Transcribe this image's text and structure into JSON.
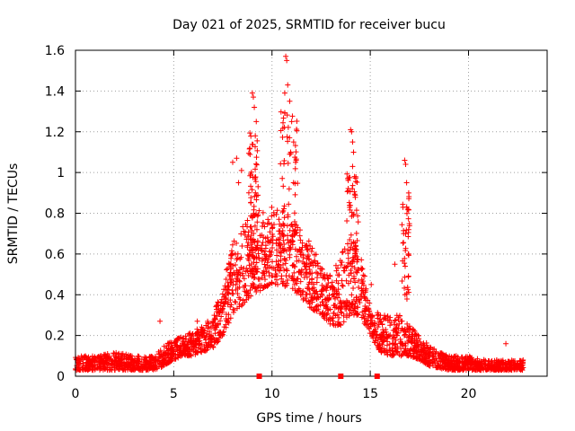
{
  "chart_data": {
    "type": "scatter",
    "title": "Day 021 of 2025, SRMTID for receiver bucu",
    "xlabel": "GPS time / hours",
    "ylabel": "SRMTID / TECUs",
    "xlim": [
      0,
      24
    ],
    "ylim": [
      0,
      1.6
    ],
    "x_ticks": [
      0,
      5,
      10,
      15,
      20
    ],
    "x_tick_labels": [
      "0",
      "5",
      "10",
      "15",
      "20"
    ],
    "y_ticks": [
      0,
      0.2,
      0.4,
      0.6,
      0.8,
      1.0,
      1.2,
      1.4,
      1.6
    ],
    "y_tick_labels": [
      "0",
      "0.2",
      "0.4",
      "0.6",
      "0.8",
      "1",
      "1.2",
      "1.4",
      "1.6"
    ],
    "grid": true,
    "marker": "plus",
    "marker_color": "#ff0000",
    "gap_markers_x": [
      9.35,
      13.5,
      15.35
    ],
    "envelope": {
      "x": [
        0,
        1,
        2,
        3,
        4,
        4.5,
        5,
        5.5,
        6,
        6.5,
        7,
        7.5,
        8,
        8.5,
        9,
        9.5,
        10,
        10.5,
        11,
        11.5,
        12,
        12.5,
        13,
        13.5,
        14,
        14.5,
        15,
        15.5,
        16,
        16.5,
        17,
        17.5,
        18,
        18.5,
        19,
        20,
        21,
        22,
        22.8
      ],
      "lo": [
        0.03,
        0.03,
        0.03,
        0.03,
        0.03,
        0.05,
        0.08,
        0.1,
        0.1,
        0.12,
        0.14,
        0.2,
        0.3,
        0.35,
        0.4,
        0.42,
        0.45,
        0.45,
        0.42,
        0.38,
        0.33,
        0.3,
        0.25,
        0.25,
        0.3,
        0.3,
        0.2,
        0.12,
        0.1,
        0.1,
        0.1,
        0.08,
        0.05,
        0.04,
        0.03,
        0.03,
        0.03,
        0.03,
        0.03
      ],
      "hi": [
        0.1,
        0.1,
        0.12,
        0.1,
        0.1,
        0.15,
        0.18,
        0.2,
        0.22,
        0.25,
        0.3,
        0.45,
        0.65,
        0.75,
        0.8,
        0.82,
        0.85,
        0.82,
        0.78,
        0.72,
        0.65,
        0.55,
        0.5,
        0.6,
        0.7,
        0.6,
        0.35,
        0.3,
        0.3,
        0.3,
        0.25,
        0.2,
        0.15,
        0.12,
        0.1,
        0.1,
        0.08,
        0.08,
        0.08
      ]
    },
    "spikes": [
      {
        "x": 4.3,
        "y": 0.27
      },
      {
        "x": 6.2,
        "y": 0.27
      },
      {
        "x": 8.0,
        "y": 1.05
      },
      {
        "x": 8.2,
        "y": 1.07
      },
      {
        "x": 8.3,
        "y": 0.95
      },
      {
        "x": 8.45,
        "y": 1.01
      },
      {
        "x": 9.0,
        "y": 1.39
      },
      {
        "x": 9.05,
        "y": 1.37
      },
      {
        "x": 9.1,
        "y": 1.32
      },
      {
        "x": 9.15,
        "y": 1.18
      },
      {
        "x": 9.2,
        "y": 1.25
      },
      {
        "x": 10.7,
        "y": 1.57
      },
      {
        "x": 10.75,
        "y": 1.55
      },
      {
        "x": 10.8,
        "y": 1.43
      },
      {
        "x": 10.65,
        "y": 1.39
      },
      {
        "x": 10.9,
        "y": 1.35
      },
      {
        "x": 11.0,
        "y": 1.25
      },
      {
        "x": 11.1,
        "y": 1.15
      },
      {
        "x": 10.95,
        "y": 1.1
      },
      {
        "x": 11.2,
        "y": 1.05
      },
      {
        "x": 14.0,
        "y": 1.21
      },
      {
        "x": 14.05,
        "y": 1.2
      },
      {
        "x": 14.1,
        "y": 1.15
      },
      {
        "x": 14.15,
        "y": 1.1
      },
      {
        "x": 14.1,
        "y": 1.03
      },
      {
        "x": 14.2,
        "y": 0.98
      },
      {
        "x": 15.05,
        "y": 0.45
      },
      {
        "x": 16.25,
        "y": 0.55
      },
      {
        "x": 16.75,
        "y": 1.06
      },
      {
        "x": 16.8,
        "y": 1.04
      },
      {
        "x": 16.85,
        "y": 0.95
      },
      {
        "x": 16.9,
        "y": 0.82
      },
      {
        "x": 16.8,
        "y": 0.7
      },
      {
        "x": 16.95,
        "y": 0.6
      },
      {
        "x": 21.9,
        "y": 0.16
      }
    ],
    "spike_clusters": [
      {
        "x_from": 8.8,
        "x_to": 9.3,
        "y_from": 0.55,
        "y_to": 1.2,
        "count": 60
      },
      {
        "x_from": 10.4,
        "x_to": 11.3,
        "y_from": 0.6,
        "y_to": 1.3,
        "count": 60
      },
      {
        "x_from": 13.8,
        "x_to": 14.4,
        "y_from": 0.55,
        "y_to": 1.0,
        "count": 50
      },
      {
        "x_from": 16.6,
        "x_to": 17.0,
        "y_from": 0.35,
        "y_to": 0.9,
        "count": 40
      }
    ],
    "point_count": 2600
  }
}
